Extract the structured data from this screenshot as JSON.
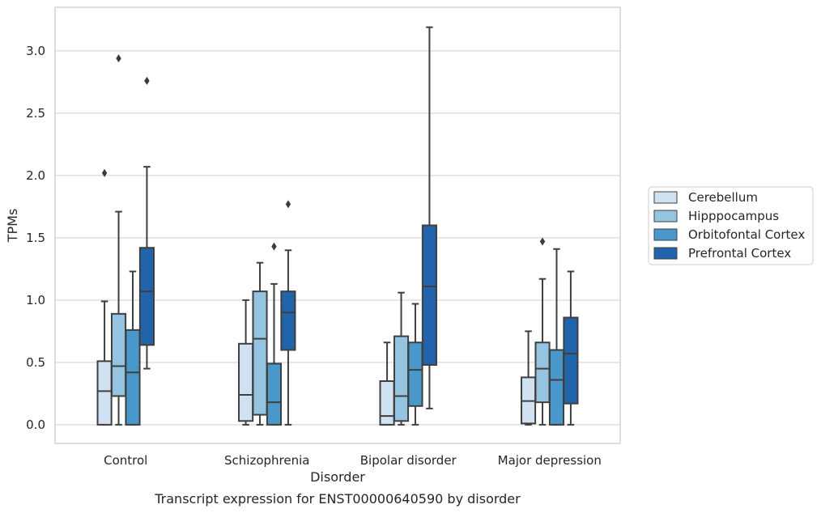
{
  "chart_data": {
    "type": "boxplot",
    "caption": "Transcript expression for ENST00000640590 by disorder",
    "xlabel": "Disorder",
    "ylabel": "TPMs",
    "ylim": [
      -0.15,
      3.35
    ],
    "yticks": [
      "0.0",
      "0.5",
      "1.0",
      "1.5",
      "2.0",
      "2.5",
      "3.0"
    ],
    "grid": "horizontal",
    "legend_position": "right",
    "categories": [
      "Control",
      "Schizophrenia",
      "Bipolar disorder",
      "Major depression"
    ],
    "series": [
      {
        "name": "Cerebellum",
        "color": "#d0e1f2",
        "boxes": [
          {
            "whislo": 0.0,
            "q1": 0.0,
            "med": 0.27,
            "q3": 0.51,
            "whishi": 0.99,
            "fliers": [
              2.02
            ]
          },
          {
            "whislo": 0.0,
            "q1": 0.03,
            "med": 0.24,
            "q3": 0.65,
            "whishi": 1.0,
            "fliers": []
          },
          {
            "whislo": 0.0,
            "q1": 0.0,
            "med": 0.07,
            "q3": 0.35,
            "whishi": 0.66,
            "fliers": []
          },
          {
            "whislo": 0.0,
            "q1": 0.01,
            "med": 0.19,
            "q3": 0.38,
            "whishi": 0.75,
            "fliers": []
          }
        ]
      },
      {
        "name": "Hipppocampus",
        "color": "#94c4df",
        "boxes": [
          {
            "whislo": 0.0,
            "q1": 0.23,
            "med": 0.47,
            "q3": 0.89,
            "whishi": 1.71,
            "fliers": [
              2.94
            ]
          },
          {
            "whislo": 0.0,
            "q1": 0.08,
            "med": 0.69,
            "q3": 1.07,
            "whishi": 1.3,
            "fliers": []
          },
          {
            "whislo": 0.0,
            "q1": 0.03,
            "med": 0.23,
            "q3": 0.71,
            "whishi": 1.06,
            "fliers": []
          },
          {
            "whislo": 0.0,
            "q1": 0.18,
            "med": 0.45,
            "q3": 0.66,
            "whishi": 1.17,
            "fliers": [
              1.47
            ]
          }
        ]
      },
      {
        "name": "Orbitofontal Cortex",
        "color": "#4a98c9",
        "boxes": [
          {
            "whislo": 0.0,
            "q1": 0.0,
            "med": 0.42,
            "q3": 0.76,
            "whishi": 1.23,
            "fliers": []
          },
          {
            "whislo": 0.0,
            "q1": 0.0,
            "med": 0.18,
            "q3": 0.49,
            "whishi": 1.13,
            "fliers": [
              1.43
            ]
          },
          {
            "whislo": 0.0,
            "q1": 0.15,
            "med": 0.44,
            "q3": 0.66,
            "whishi": 0.97,
            "fliers": []
          },
          {
            "whislo": 0.0,
            "q1": 0.0,
            "med": 0.36,
            "q3": 0.6,
            "whishi": 1.41,
            "fliers": []
          }
        ]
      },
      {
        "name": "Prefrontal Cortex",
        "color": "#2164ab",
        "boxes": [
          {
            "whislo": 0.45,
            "q1": 0.64,
            "med": 1.07,
            "q3": 1.42,
            "whishi": 2.07,
            "fliers": [
              2.76
            ]
          },
          {
            "whislo": 0.0,
            "q1": 0.6,
            "med": 0.9,
            "q3": 1.07,
            "whishi": 1.4,
            "fliers": [
              1.77
            ]
          },
          {
            "whislo": 0.13,
            "q1": 0.48,
            "med": 1.11,
            "q3": 1.6,
            "whishi": 3.19,
            "fliers": []
          },
          {
            "whislo": 0.0,
            "q1": 0.17,
            "med": 0.57,
            "q3": 0.86,
            "whishi": 1.23,
            "fliers": []
          }
        ]
      }
    ]
  }
}
